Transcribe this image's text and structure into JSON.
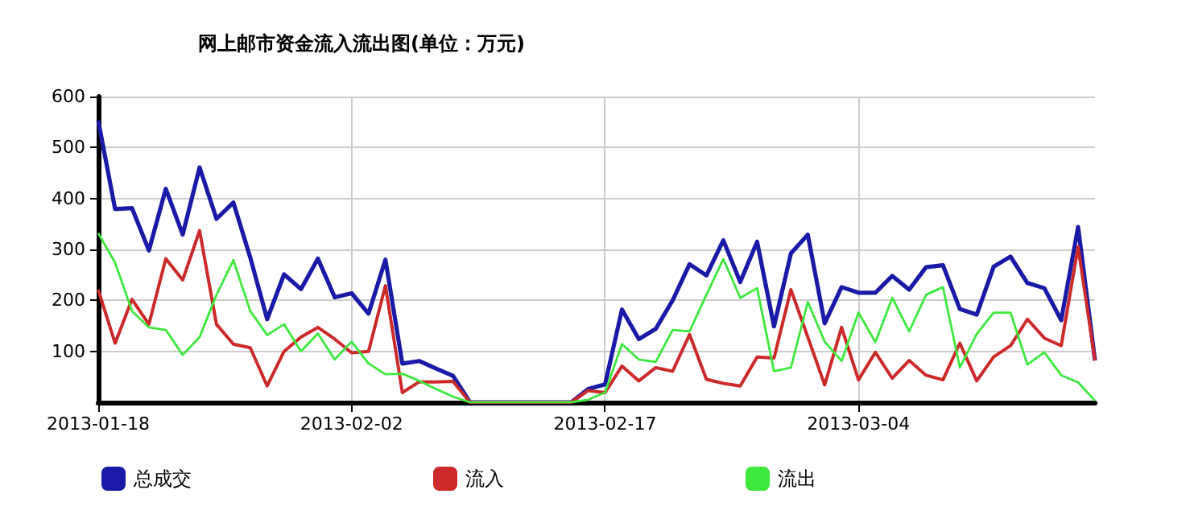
{
  "chart_data": {
    "type": "line",
    "title": "网上邮市资金流入流出图(单位：万元)",
    "x": [
      "2013-01-18",
      "2013-01-19",
      "2013-01-20",
      "2013-01-21",
      "2013-01-22",
      "2013-01-23",
      "2013-01-24",
      "2013-01-25",
      "2013-01-26",
      "2013-01-27",
      "2013-01-28",
      "2013-01-29",
      "2013-01-30",
      "2013-01-31",
      "2013-02-01",
      "2013-02-02",
      "2013-02-03",
      "2013-02-04",
      "2013-02-05",
      "2013-02-06",
      "2013-02-07",
      "2013-02-08",
      "2013-02-09",
      "2013-02-10",
      "2013-02-11",
      "2013-02-12",
      "2013-02-13",
      "2013-02-14",
      "2013-02-15",
      "2013-02-16",
      "2013-02-17",
      "2013-02-18",
      "2013-02-19",
      "2013-02-20",
      "2013-02-21",
      "2013-02-22",
      "2013-02-23",
      "2013-02-24",
      "2013-02-25",
      "2013-02-26",
      "2013-02-27",
      "2013-02-28",
      "2013-03-01",
      "2013-03-02",
      "2013-03-03",
      "2013-03-04",
      "2013-03-05",
      "2013-03-06",
      "2013-03-07",
      "2013-03-08",
      "2013-03-09",
      "2013-03-10",
      "2013-03-11",
      "2013-03-12",
      "2013-03-13",
      "2013-03-14",
      "2013-03-15",
      "2013-03-16",
      "2013-03-17",
      "2013-03-18"
    ],
    "series": [
      {
        "name": "总成交",
        "color": "#1a1aa6",
        "values": [
          553,
          379,
          381,
          298,
          419,
          329,
          461,
          360,
          392,
          284,
          163,
          251,
          222,
          282,
          206,
          214,
          174,
          280,
          76,
          81,
          66,
          52,
          0,
          0,
          0,
          0,
          0,
          0,
          0,
          26,
          35,
          182,
          124,
          144,
          200,
          271,
          249,
          318,
          236,
          315,
          149,
          292,
          329,
          155,
          226,
          215,
          215,
          248,
          221,
          265,
          269,
          183,
          172,
          266,
          286,
          234,
          224,
          161,
          344,
          82
        ]
      },
      {
        "name": "流入",
        "color": "#cc2a2a",
        "values": [
          221,
          116,
          202,
          153,
          282,
          240,
          337,
          153,
          114,
          107,
          32,
          100,
          128,
          147,
          124,
          97,
          100,
          229,
          19,
          40,
          40,
          41,
          0,
          0,
          0,
          0,
          0,
          0,
          0,
          23,
          19,
          71,
          42,
          68,
          61,
          133,
          45,
          37,
          32,
          89,
          87,
          221,
          128,
          34,
          147,
          44,
          98,
          47,
          82,
          53,
          44,
          116,
          42,
          89,
          111,
          163,
          126,
          111,
          305,
          82
        ]
      },
      {
        "name": "流出",
        "color": "#3ee83e",
        "values": [
          332,
          274,
          179,
          147,
          142,
          93,
          128,
          211,
          279,
          179,
          132,
          153,
          100,
          135,
          84,
          119,
          76,
          55,
          56,
          42,
          26,
          11,
          0,
          0,
          0,
          0,
          0,
          0,
          0,
          5,
          19,
          114,
          84,
          79,
          142,
          139,
          211,
          281,
          205,
          224,
          61,
          68,
          197,
          119,
          81,
          176,
          118,
          205,
          139,
          211,
          226,
          68,
          134,
          176,
          176,
          74,
          98,
          53,
          39,
          3
        ]
      }
    ],
    "xlim": [
      "2013-01-18",
      "2013-03-18"
    ],
    "xticks": [
      "2013-01-18",
      "2013-02-02",
      "2013-02-17",
      "2013-03-04"
    ],
    "ylim": [
      0,
      600
    ],
    "yticks": [
      100,
      200,
      300,
      400,
      500,
      600
    ],
    "grid": true,
    "legend": "bottom left",
    "marker": "none",
    "line_style": "solid"
  }
}
